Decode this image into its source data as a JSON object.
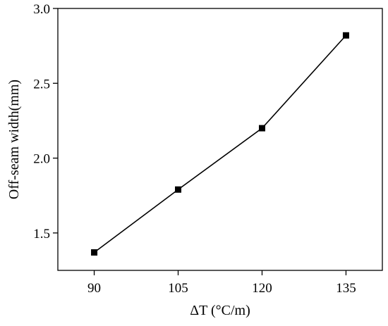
{
  "chart_data": {
    "type": "line",
    "title": "",
    "xlabel": "ΔT (°C/m)",
    "ylabel": "Off-seam width(mm)",
    "x": [
      90,
      105,
      120,
      135
    ],
    "series": [
      {
        "values": [
          1.37,
          1.79,
          2.2,
          2.82
        ]
      }
    ],
    "xlim": [
      83.5,
      141.5
    ],
    "ylim": [
      1.25,
      3.0
    ],
    "xticks": [
      90,
      105,
      120,
      135
    ],
    "xtick_labels": [
      "90",
      "105",
      "120",
      "135"
    ],
    "yticks": [
      1.5,
      2.0,
      2.5,
      3.0
    ],
    "ytick_labels": [
      "1.5",
      "2.0",
      "2.5",
      "3.0"
    ],
    "grid": false,
    "marker": "square",
    "line_color": "#000000"
  }
}
